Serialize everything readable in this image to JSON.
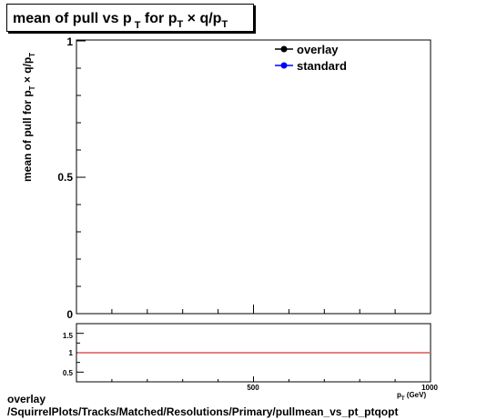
{
  "chart_data": [
    {
      "type": "line",
      "title": "mean of pull vs p  T for pT × q/pT",
      "xlabel": "",
      "ylabel": "mean of pull for pT × q/pT",
      "ylim": [
        0,
        1
      ],
      "y_ticks": [
        "0",
        "0.5",
        "1"
      ],
      "grid": false,
      "legend": {
        "placement": "top-right",
        "entries": [
          "overlay",
          "standard"
        ]
      },
      "series": [
        {
          "name": "overlay",
          "color": "#000000",
          "marker": "circle",
          "points": []
        },
        {
          "name": "standard",
          "color": "#0000ff",
          "marker": "circle",
          "points": []
        }
      ]
    },
    {
      "type": "line",
      "title": "",
      "xlabel": "p  (GeV)",
      "xlim": [
        0,
        1000
      ],
      "x_ticks": [
        "500",
        "1000"
      ],
      "ylim": [
        0.25,
        1.75
      ],
      "y_ticks": [
        "0.5",
        "1",
        "1.5"
      ],
      "grid": false,
      "reference_line": {
        "y": 1,
        "color": "#cc0000"
      },
      "series": []
    }
  ],
  "footer": {
    "line1": "overlay",
    "line2": "/SquirrelPlots/Tracks/Matched/Resolutions/Primary/pullmean_vs_pt_ptqopt"
  }
}
